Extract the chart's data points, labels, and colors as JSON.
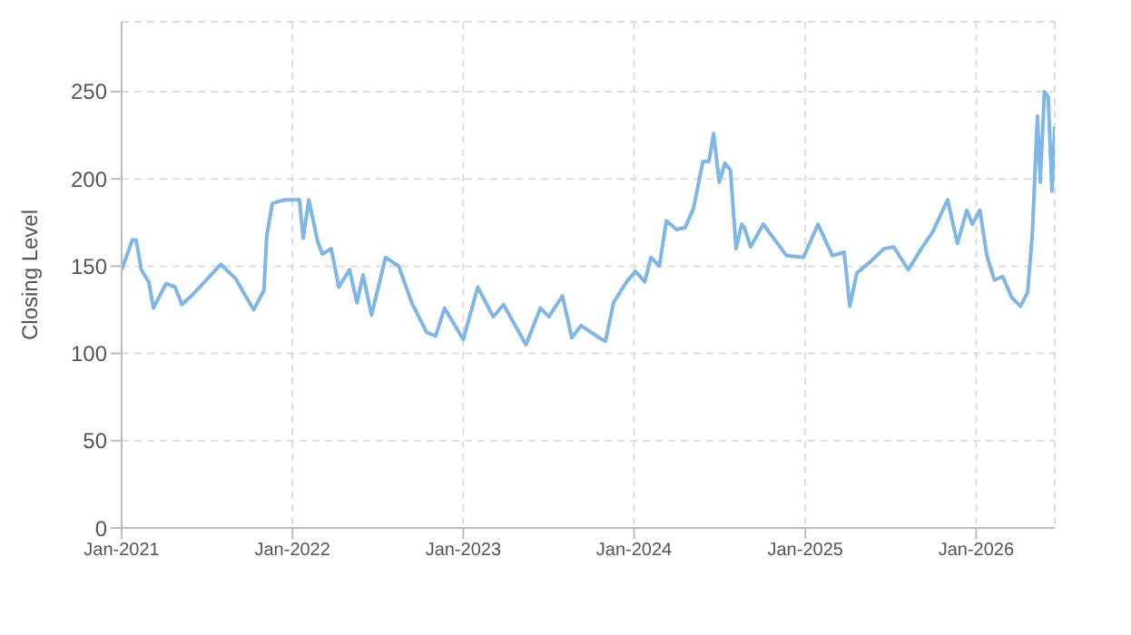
{
  "chart_data": {
    "type": "line",
    "ylabel": "Closing Level",
    "grid": true,
    "line_style": "solid",
    "marker": "none",
    "xlim": [
      "2021-01-01",
      "2026-06-18"
    ],
    "xticks": [
      {
        "value": "2021-01-01",
        "label": "Jan-2021"
      },
      {
        "value": "2022-01-01",
        "label": "Jan-2022"
      },
      {
        "value": "2023-01-01",
        "label": "Jan-2023"
      },
      {
        "value": "2024-01-01",
        "label": "Jan-2024"
      },
      {
        "value": "2025-01-01",
        "label": "Jan-2025"
      },
      {
        "value": "2026-01-01",
        "label": "Jan-2026"
      }
    ],
    "ylim": [
      0,
      290
    ],
    "yticks": [
      0,
      50,
      100,
      150,
      200,
      250
    ],
    "x": [
      "2021-01-01",
      "2021-01-24",
      "2021-02-01",
      "2021-02-12",
      "2021-02-28",
      "2021-03-10",
      "2021-04-06",
      "2021-04-25",
      "2021-05-10",
      "2021-06-03",
      "2021-07-04",
      "2021-08-01",
      "2021-09-01",
      "2021-10-10",
      "2021-11-01",
      "2021-11-07",
      "2021-11-19",
      "2021-12-16",
      "2022-01-16",
      "2022-01-24",
      "2022-02-05",
      "2022-02-24",
      "2022-03-06",
      "2022-03-25",
      "2022-04-10",
      "2022-05-03",
      "2022-05-19",
      "2022-06-01",
      "2022-06-19",
      "2022-07-19",
      "2022-08-16",
      "2022-09-13",
      "2022-10-15",
      "2022-11-03",
      "2022-11-22",
      "2023-01-01",
      "2023-02-01",
      "2023-03-06",
      "2023-03-28",
      "2023-05-15",
      "2023-06-15",
      "2023-07-03",
      "2023-08-01",
      "2023-08-21",
      "2023-09-10",
      "2023-10-18",
      "2023-11-01",
      "2023-11-18",
      "2023-12-16",
      "2024-01-04",
      "2024-01-24",
      "2024-02-06",
      "2024-02-24",
      "2024-03-10",
      "2024-04-01",
      "2024-04-19",
      "2024-05-07",
      "2024-05-27",
      "2024-06-09",
      "2024-06-19",
      "2024-07-01",
      "2024-07-13",
      "2024-07-25",
      "2024-08-06",
      "2024-08-18",
      "2024-08-24",
      "2024-09-06",
      "2024-10-03",
      "2024-11-22",
      "2024-12-28",
      "2025-01-28",
      "2025-02-28",
      "2025-03-25",
      "2025-04-06",
      "2025-04-21",
      "2025-05-22",
      "2025-06-18",
      "2025-07-09",
      "2025-08-09",
      "2025-09-06",
      "2025-10-01",
      "2025-11-01",
      "2025-11-22",
      "2025-12-12",
      "2025-12-24",
      "2026-01-09",
      "2026-01-24",
      "2026-02-09",
      "2026-02-27",
      "2026-03-18",
      "2026-04-06",
      "2026-04-21",
      "2026-05-01",
      "2026-05-12",
      "2026-05-18",
      "2026-05-27",
      "2026-06-04",
      "2026-06-12",
      "2026-06-18"
    ],
    "series": [
      {
        "color": "#7eb6e8",
        "values": [
          148,
          165,
          165,
          148,
          141,
          126,
          140,
          138,
          128,
          134,
          143,
          151,
          143,
          125,
          136,
          167,
          186,
          188,
          188,
          166,
          188,
          164,
          157,
          160,
          138,
          148,
          129,
          145,
          122,
          155,
          150,
          129,
          112,
          110,
          126,
          108,
          138,
          121,
          128,
          105,
          126,
          121,
          133,
          109,
          116,
          109,
          107,
          129,
          141,
          147,
          141,
          155,
          150,
          176,
          171,
          172,
          183,
          210,
          210,
          226,
          198,
          209,
          205,
          160,
          174,
          172,
          161,
          174,
          156,
          155,
          174,
          156,
          158,
          127,
          146,
          153,
          160,
          161,
          148,
          160,
          170,
          188,
          163,
          182,
          174,
          182,
          156,
          142,
          144,
          132,
          127,
          135,
          168,
          236,
          198,
          250,
          247,
          193,
          230
        ]
      }
    ]
  }
}
